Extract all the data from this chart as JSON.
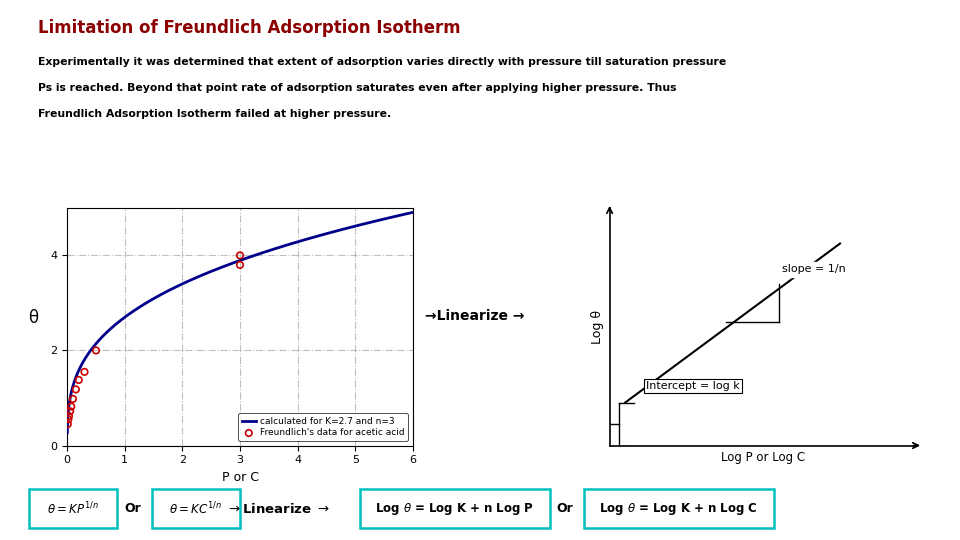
{
  "title": "Limitation of Freundlich Adsorption Isotherm",
  "title_color": "#8B0000",
  "body_text_line1": "Experimentally it was determined that extent of adsorption varies directly with pressure till saturation pressure",
  "body_text_line2": "Ps is reached. Beyond that point rate of adsorption saturates even after applying higher pressure. Thus",
  "body_text_line3": "Freundlich Adsorption Isotherm failed at higher pressure.",
  "body_color": "#000000",
  "left_plot": {
    "scatter_x": [
      0.01,
      0.02,
      0.03,
      0.05,
      0.07,
      0.1,
      0.15,
      0.2,
      0.3,
      0.5,
      3.0,
      3.0
    ],
    "scatter_y": [
      0.45,
      0.55,
      0.62,
      0.72,
      0.82,
      0.98,
      1.18,
      1.38,
      1.55,
      2.0,
      3.8,
      4.0
    ],
    "scatter_color": "#cc0000",
    "curve_K": 2.7,
    "curve_n": 3,
    "xlabel": "P or C",
    "ylabel": "θ",
    "xlim": [
      0,
      6
    ],
    "ylim": [
      0,
      5
    ],
    "xticks": [
      0,
      1,
      2,
      3,
      4,
      5,
      6
    ],
    "yticks": [
      0,
      2,
      4
    ],
    "legend1": "Freundlich's data for acetic acid",
    "legend2": "calculated for K=2.7 and n=3",
    "line_color": "#00008B"
  },
  "right_plot": {
    "xlabel": "Log P or Log C",
    "ylabel": "Log θ",
    "slope_label": "slope = 1/n",
    "intercept_label": "Intercept = log k",
    "line_color": "#000000"
  },
  "arrow_text": "→Linearize →",
  "box_color": "#00BFBF",
  "background_color": "#ffffff"
}
